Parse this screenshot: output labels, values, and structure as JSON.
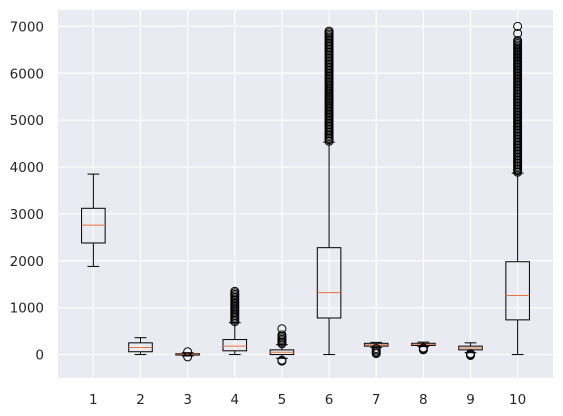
{
  "chart_data": {
    "type": "boxplot",
    "title": "",
    "xlabel": "",
    "ylabel": "",
    "grid": true,
    "ylim": [
      -500,
      7350
    ],
    "x_ticks": [
      "1",
      "2",
      "3",
      "4",
      "5",
      "6",
      "7",
      "8",
      "9",
      "10"
    ],
    "y_ticks": [
      0,
      1000,
      2000,
      3000,
      4000,
      5000,
      6000,
      7000
    ],
    "colors": {
      "plot_background": "#eaeaf2",
      "grid": "#ffffff",
      "box": "#000000",
      "median": "#e8743b"
    },
    "boxes": [
      {
        "label": "1",
        "whisker_low": 1880,
        "q1": 2380,
        "median": 2760,
        "q3": 3120,
        "whisker_high": 3850,
        "fliers": []
      },
      {
        "label": "2",
        "whisker_low": 0,
        "q1": 60,
        "median": 150,
        "q3": 250,
        "whisker_high": 360,
        "fliers": []
      },
      {
        "label": "3",
        "whisker_low": -30,
        "q1": -10,
        "median": 10,
        "q3": 20,
        "whisker_high": 40,
        "fliers": [
          60,
          -50
        ]
      },
      {
        "label": "4",
        "whisker_low": 0,
        "q1": 80,
        "median": 180,
        "q3": 320,
        "whisker_high": 680,
        "fliers_range": [
          700,
          1350
        ]
      },
      {
        "label": "5",
        "whisker_low": -80,
        "q1": 0,
        "median": 50,
        "q3": 100,
        "whisker_high": 210,
        "fliers_range": [
          230,
          420
        ],
        "fliers": [
          550,
          -120,
          -140
        ]
      },
      {
        "label": "6",
        "whisker_low": 0,
        "q1": 780,
        "median": 1320,
        "q3": 2280,
        "whisker_high": 4530,
        "fliers_range": [
          4550,
          6900
        ]
      },
      {
        "label": "7",
        "whisker_low": 150,
        "q1": 180,
        "median": 210,
        "q3": 240,
        "whisker_high": 260,
        "fliers": [
          130,
          100,
          70,
          40,
          20
        ]
      },
      {
        "label": "8",
        "whisker_low": 170,
        "q1": 195,
        "median": 220,
        "q3": 240,
        "whisker_high": 265,
        "fliers": [
          140,
          120,
          100
        ]
      },
      {
        "label": "9",
        "whisker_low": 40,
        "q1": 100,
        "median": 140,
        "q3": 180,
        "whisker_high": 250,
        "fliers": [
          20,
          0,
          -20
        ]
      },
      {
        "label": "10",
        "whisker_low": 0,
        "q1": 740,
        "median": 1260,
        "q3": 1980,
        "whisker_high": 3870,
        "fliers_range": [
          3890,
          6700
        ],
        "fliers": [
          6850,
          7000
        ]
      }
    ]
  }
}
